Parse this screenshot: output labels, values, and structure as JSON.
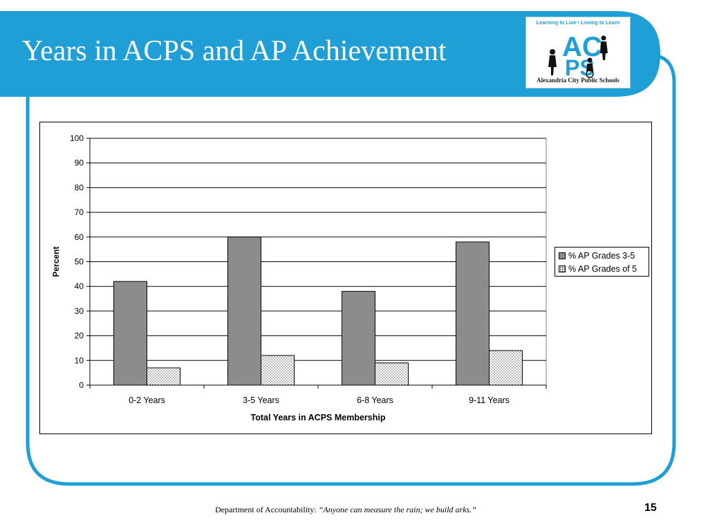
{
  "slide": {
    "title": "Years in ACPS and AP Achievement",
    "page_number": "15",
    "footer": {
      "department": "Department of Accountability:",
      "motto": "“Anyone can measure the rain; we build arks.”"
    }
  },
  "logo": {
    "tagline": "Learning to Live • Loving to Learn",
    "letters_top": "AC",
    "letters_bottom": "PS",
    "school_name": "Alexandria City Public Schools"
  },
  "colors": {
    "brand_blue": "#1f9fd5",
    "series1_fill": "#8c8c8c",
    "series2_fill": "#f4f4f4"
  },
  "chart_data": {
    "type": "bar",
    "title": "",
    "xlabel": "Total Years in ACPS Membership",
    "ylabel": "Percent",
    "ylim": [
      0,
      100
    ],
    "yticks": [
      0,
      10,
      20,
      30,
      40,
      50,
      60,
      70,
      80,
      90,
      100
    ],
    "grid": true,
    "legend_position": "right",
    "categories": [
      "0-2 Years",
      "3-5 Years",
      "6-8 Years",
      "9-11 Years"
    ],
    "series": [
      {
        "name": "% AP Grades 3-5",
        "values": [
          42,
          60,
          38,
          58
        ]
      },
      {
        "name": "% AP Grades of 5",
        "values": [
          7,
          12,
          9,
          14
        ]
      }
    ]
  }
}
